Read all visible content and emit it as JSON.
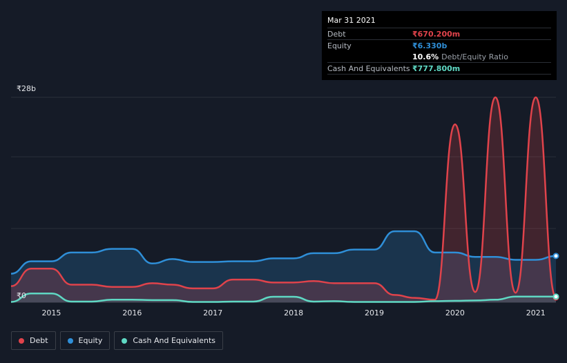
{
  "colors": {
    "debt": "#e0434b",
    "equity": "#2f8fd8",
    "cash": "#5fd9c4",
    "grid": "#2a303b",
    "background": "#151b27"
  },
  "tooltip": {
    "date": "Mar 31 2021",
    "rows": [
      {
        "label": "Debt",
        "value": "₹670.200m",
        "color": "#e0434b"
      },
      {
        "label": "Equity",
        "value": "₹6.330b",
        "color": "#2f8fd8"
      },
      {
        "label": "",
        "value": "10.6%",
        "sub": "Debt/Equity Ratio",
        "color": "#ffffff"
      },
      {
        "label": "Cash And Equivalents",
        "value": "₹777.800m",
        "color": "#5fd9c4"
      }
    ]
  },
  "legend": [
    {
      "label": "Debt",
      "color": "#e0434b"
    },
    {
      "label": "Equity",
      "color": "#2f8fd8"
    },
    {
      "label": "Cash And Equivalents",
      "color": "#5fd9c4"
    }
  ],
  "chart_data": {
    "type": "area",
    "y_max_label": "₹28b",
    "y_min_label": "₹0",
    "ylim": [
      0,
      28
    ],
    "xlim": [
      2014.5,
      2021.25
    ],
    "x_ticks": [
      {
        "value": 2015,
        "label": "2015"
      },
      {
        "value": 2016,
        "label": "2016"
      },
      {
        "value": 2017,
        "label": "2017"
      },
      {
        "value": 2018,
        "label": "2018"
      },
      {
        "value": 2019,
        "label": "2019"
      },
      {
        "value": 2020,
        "label": "2020"
      },
      {
        "value": 2021,
        "label": "2021"
      }
    ],
    "grid": true,
    "legend_position": "bottom-left",
    "series": [
      {
        "name": "Debt",
        "key": "debt",
        "x": [
          2014.5,
          2014.75,
          2015.0,
          2015.25,
          2015.5,
          2015.75,
          2016.0,
          2016.25,
          2016.5,
          2016.75,
          2017.0,
          2017.25,
          2017.5,
          2017.75,
          2018.0,
          2018.25,
          2018.5,
          2018.75,
          2019.0,
          2019.25,
          2019.5,
          2019.75,
          2020.0,
          2020.25,
          2020.5,
          2020.75,
          2021.0,
          2021.25
        ],
        "values": [
          2.2,
          4.6,
          4.6,
          2.4,
          2.4,
          2.1,
          2.1,
          2.6,
          2.4,
          1.9,
          1.9,
          3.1,
          3.1,
          2.7,
          2.7,
          2.9,
          2.6,
          2.6,
          2.6,
          1.0,
          0.6,
          0.35,
          24.3,
          1.4,
          28.0,
          1.3,
          28.0,
          0.67
        ]
      },
      {
        "name": "Equity",
        "key": "equity",
        "x": [
          2014.5,
          2014.75,
          2015.0,
          2015.25,
          2015.5,
          2015.75,
          2016.0,
          2016.25,
          2016.5,
          2016.75,
          2017.0,
          2017.25,
          2017.5,
          2017.75,
          2018.0,
          2018.25,
          2018.5,
          2018.75,
          2019.0,
          2019.25,
          2019.5,
          2019.75,
          2020.0,
          2020.25,
          2020.5,
          2020.75,
          2021.0,
          2021.25
        ],
        "values": [
          3.9,
          5.6,
          5.6,
          6.8,
          6.8,
          7.3,
          7.3,
          5.3,
          5.9,
          5.5,
          5.5,
          5.6,
          5.6,
          6.0,
          6.0,
          6.7,
          6.7,
          7.2,
          7.2,
          9.7,
          9.7,
          6.8,
          6.8,
          6.2,
          6.2,
          5.8,
          5.8,
          6.33
        ]
      },
      {
        "name": "Cash And Equivalents",
        "key": "cash",
        "x": [
          2014.5,
          2014.75,
          2015.0,
          2015.25,
          2015.5,
          2015.75,
          2016.0,
          2016.25,
          2016.5,
          2016.75,
          2017.0,
          2017.25,
          2017.5,
          2017.75,
          2018.0,
          2018.25,
          2018.5,
          2018.75,
          2019.0,
          2019.25,
          2019.5,
          2019.75,
          2020.0,
          2020.25,
          2020.5,
          2020.75,
          2021.0,
          2021.25
        ],
        "values": [
          0.05,
          1.2,
          1.2,
          0.1,
          0.1,
          0.35,
          0.35,
          0.3,
          0.3,
          0.05,
          0.05,
          0.1,
          0.1,
          0.75,
          0.75,
          0.1,
          0.15,
          0.05,
          0.05,
          0.05,
          0.05,
          0.15,
          0.2,
          0.25,
          0.35,
          0.78,
          0.78,
          0.778
        ]
      }
    ]
  }
}
